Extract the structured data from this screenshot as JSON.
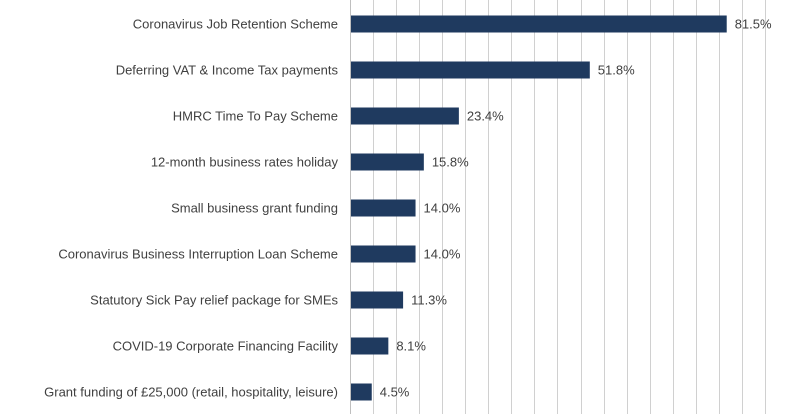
{
  "chart_data": {
    "type": "bar",
    "orientation": "horizontal",
    "categories": [
      "Coronavirus Job Retention Scheme",
      "Deferring VAT & Income Tax payments",
      "HMRC Time To Pay Scheme",
      "12-month business rates holiday",
      "Small business grant funding",
      "Coronavirus Business Interruption Loan Scheme",
      "Statutory Sick Pay relief package for SMEs",
      "COVID-19 Corporate Financing Facility",
      "Grant funding of £25,000 (retail, hospitality, leisure)"
    ],
    "values": [
      81.5,
      51.8,
      23.4,
      15.8,
      14.0,
      14.0,
      11.3,
      8.1,
      4.5
    ],
    "value_labels": [
      "81.5%",
      "51.8%",
      "23.4%",
      "15.8%",
      "14.0%",
      "14.0%",
      "11.3%",
      "8.1%",
      "4.5%"
    ],
    "xlim": [
      0,
      90
    ],
    "grid_step": 5,
    "grid": true,
    "legend": "none",
    "title": "",
    "xlabel": "",
    "ylabel": "",
    "bar_color": "#1f3a5f",
    "grid_color": "#d0d0d0",
    "text_color": "#404040"
  }
}
